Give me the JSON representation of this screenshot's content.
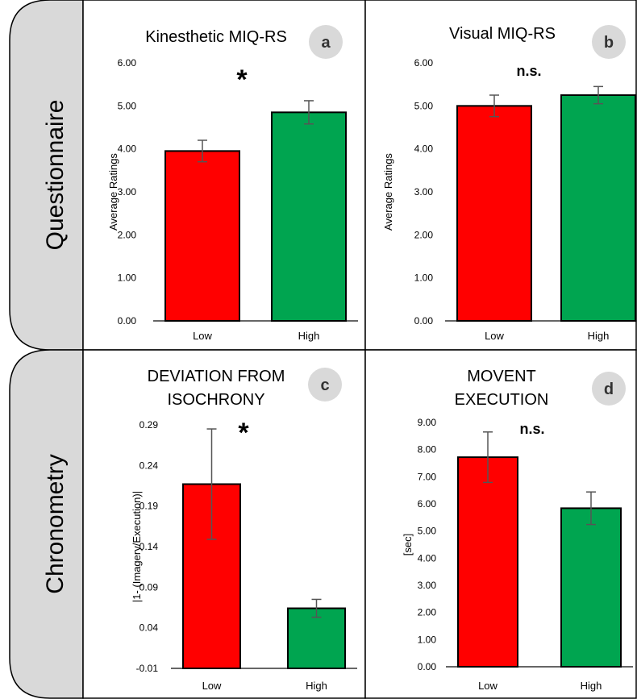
{
  "figure": {
    "row_labels": [
      "Questionnaire",
      "Chronometry"
    ]
  },
  "colors": {
    "low": "#ff0000",
    "high": "#00a550",
    "label_tab": "#d9d9d9",
    "badge": "#d9d9d9"
  },
  "chart_data": [
    {
      "type": "bar",
      "panel": "a",
      "title": "Kinesthetic MIQ-RS",
      "title_lines": [
        "Kinesthetic MIQ-RS"
      ],
      "ylabel": "Average  Ratings",
      "categories": [
        "Low",
        "High"
      ],
      "values": [
        3.95,
        4.85
      ],
      "error": [
        0.25,
        0.27
      ],
      "ylim": [
        0,
        6
      ],
      "yticks": [
        0,
        1,
        2,
        3,
        4,
        5,
        6
      ],
      "ytick_labels": [
        "0.00",
        "1.00",
        "2.00",
        "3.00",
        "4.00",
        "5.00",
        "6.00"
      ],
      "significance": "*",
      "grid": false
    },
    {
      "type": "bar",
      "panel": "b",
      "title": "Visual MIQ-RS",
      "title_lines": [
        "Visual MIQ-RS"
      ],
      "ylabel": "Average  Ratings",
      "categories": [
        "Low",
        "High"
      ],
      "values": [
        5.0,
        5.25
      ],
      "error": [
        0.25,
        0.2
      ],
      "ylim": [
        0,
        6
      ],
      "yticks": [
        0,
        1,
        2,
        3,
        4,
        5,
        6
      ],
      "ytick_labels": [
        "0.00",
        "1.00",
        "2.00",
        "3.00",
        "4.00",
        "5.00",
        "6.00"
      ],
      "significance": "n.s.",
      "grid": false
    },
    {
      "type": "bar",
      "panel": "c",
      "title": "DEVIATION FROM ISOCHRONY",
      "title_lines": [
        "DEVIATION FROM",
        "ISOCHRONY"
      ],
      "ylabel": "|1- (Imagery/Execution)|",
      "categories": [
        "Low",
        "High"
      ],
      "values": [
        0.217,
        0.064
      ],
      "error": [
        0.068,
        0.011
      ],
      "ylim": [
        -0.01,
        0.29
      ],
      "yticks": [
        -0.01,
        0.04,
        0.09,
        0.14,
        0.19,
        0.24,
        0.29
      ],
      "ytick_labels": [
        "-0.01",
        "0.04",
        "0.09",
        "0.14",
        "0.19",
        "0.24",
        "0.29"
      ],
      "significance": "*",
      "grid": false
    },
    {
      "type": "bar",
      "panel": "d",
      "title": "MOVENT EXECUTION",
      "title_lines": [
        "MOVENT",
        "EXECUTION"
      ],
      "ylabel": "[sec]",
      "categories": [
        "Low",
        "High"
      ],
      "values": [
        7.72,
        5.84
      ],
      "error": [
        0.93,
        0.6
      ],
      "ylim": [
        0,
        9
      ],
      "yticks": [
        0,
        1,
        2,
        3,
        4,
        5,
        6,
        7,
        8,
        9
      ],
      "ytick_labels": [
        "0.00",
        "1.00",
        "2.00",
        "3.00",
        "4.00",
        "5.00",
        "6.00",
        "7.00",
        "8.00",
        "9.00"
      ],
      "significance": "n.s.",
      "grid": false
    }
  ]
}
